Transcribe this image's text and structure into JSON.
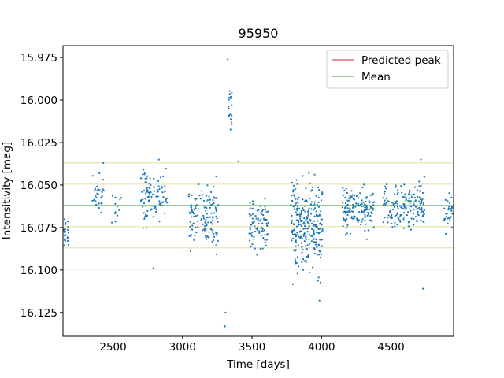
{
  "chart_data": {
    "type": "scatter",
    "title": "95950",
    "xlabel": "Time [days]",
    "ylabel": "Intensitivity [mag]",
    "xlim": [
      2140,
      4950
    ],
    "ylim": [
      16.139,
      15.968
    ],
    "y_inverted": true,
    "x_ticks": [
      2500,
      3000,
      3500,
      4000,
      4500
    ],
    "x_tick_labels": [
      "2500",
      "3000",
      "3500",
      "4000",
      "4500"
    ],
    "y_ticks": [
      15.975,
      16.0,
      16.025,
      16.05,
      16.075,
      16.1,
      16.125
    ],
    "y_tick_labels": [
      "15.975",
      "16.000",
      "16.025",
      "16.050",
      "16.075",
      "16.100",
      "16.125"
    ],
    "grid": false,
    "legend_position": "top-right",
    "colors": {
      "points": "#1f77b4",
      "predicted_peak": "#d62728",
      "mean": "#2ca02c",
      "sigma_lines": "#e0e0a0"
    },
    "predicted_peak": {
      "name": "Predicted peak",
      "x": 3435
    },
    "mean": {
      "name": "Mean",
      "y": 16.062
    },
    "sigma_lines": [
      16.037,
      16.0495,
      16.0745,
      16.087,
      16.0995
    ],
    "clusters": [
      {
        "x_min": 2140,
        "x_max": 2180,
        "y_center": 16.08,
        "y_spread": 0.012,
        "count": 25
      },
      {
        "x_min": 2350,
        "x_max": 2440,
        "y_center": 16.056,
        "y_spread": 0.009,
        "count": 30
      },
      {
        "x_min": 2480,
        "x_max": 2560,
        "y_center": 16.065,
        "y_spread": 0.01,
        "count": 12
      },
      {
        "x_min": 2700,
        "x_max": 2890,
        "y_center": 16.058,
        "y_spread": 0.013,
        "count": 100
      },
      {
        "x_min": 3040,
        "x_max": 3260,
        "y_center": 16.068,
        "y_spread": 0.015,
        "count": 130
      },
      {
        "x_min": 3330,
        "x_max": 3355,
        "y_center": 16.005,
        "y_spread": 0.012,
        "count": 18
      },
      {
        "x_min": 3480,
        "x_max": 3620,
        "y_center": 16.074,
        "y_spread": 0.013,
        "count": 90
      },
      {
        "x_min": 3780,
        "x_max": 4010,
        "y_center": 16.075,
        "y_spread": 0.02,
        "count": 280
      },
      {
        "x_min": 4150,
        "x_max": 4380,
        "y_center": 16.065,
        "y_spread": 0.011,
        "count": 150
      },
      {
        "x_min": 4440,
        "x_max": 4740,
        "y_center": 16.062,
        "y_spread": 0.011,
        "count": 170
      },
      {
        "x_min": 4880,
        "x_max": 4950,
        "y_center": 16.067,
        "y_spread": 0.01,
        "count": 40
      }
    ],
    "outliers": [
      {
        "x": 3325,
        "y": 15.976
      },
      {
        "x": 3305,
        "y": 16.133
      },
      {
        "x": 3300,
        "y": 16.134
      },
      {
        "x": 3310,
        "y": 16.125
      },
      {
        "x": 2430,
        "y": 16.037
      },
      {
        "x": 2830,
        "y": 16.035
      },
      {
        "x": 4715,
        "y": 16.035
      },
      {
        "x": 3400,
        "y": 16.036
      },
      {
        "x": 3985,
        "y": 16.118
      },
      {
        "x": 4730,
        "y": 16.111
      },
      {
        "x": 2790,
        "y": 16.099
      }
    ]
  }
}
